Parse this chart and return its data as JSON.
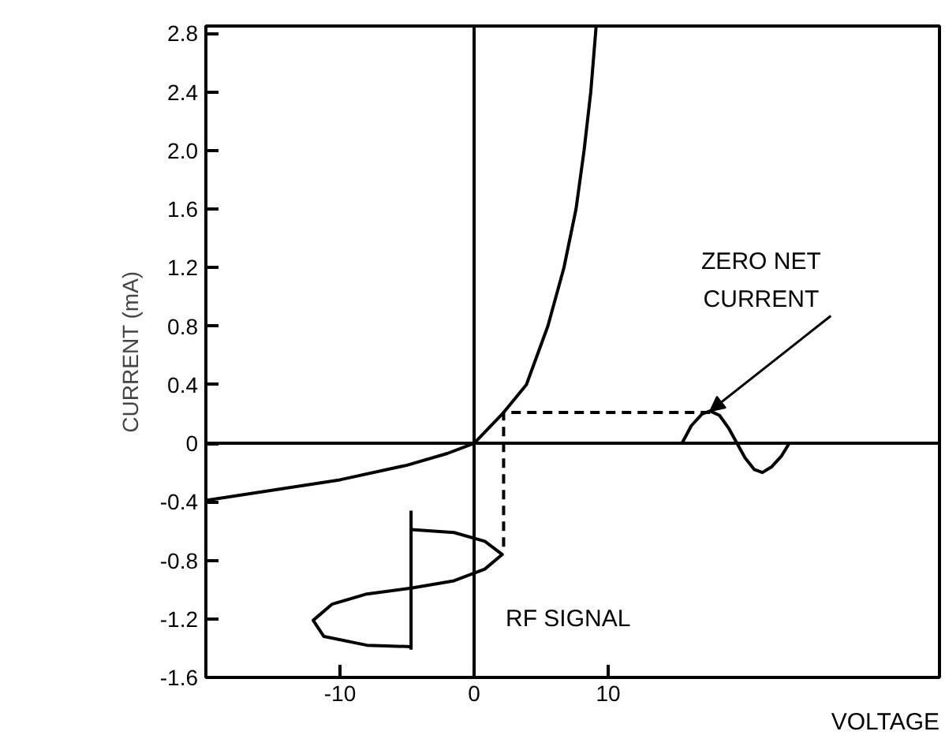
{
  "chart_data": {
    "type": "line",
    "xlabel": "VOLTAGE",
    "ylabel": "CURRENT (mA)",
    "xlim": [
      -20,
      34.7
    ],
    "ylim": [
      -1.6,
      2.85
    ],
    "xticks": [
      -10,
      0,
      10
    ],
    "yticks": [
      -1.6,
      -1.2,
      -0.8,
      -0.4,
      0,
      0.4,
      0.8,
      1.2,
      1.6,
      {
        "value": 2.0,
        "label": "2.0"
      },
      2.4,
      2.8
    ],
    "grid": false,
    "marker": "none",
    "series": [
      {
        "color": "#000000",
        "line_style": "solid",
        "x": [
          0,
          0
        ],
        "values": [
          -1.6,
          2.85
        ]
      },
      {
        "color": "#000000",
        "line_style": "solid",
        "x": [
          -20,
          34.7
        ],
        "values": [
          0,
          0
        ]
      },
      {
        "color": "#000000",
        "line_style": "solid",
        "x": [
          -20,
          -15,
          -10,
          -5,
          -2,
          0,
          2.2,
          3.9,
          5.5,
          6.7,
          7.6,
          8.2,
          8.7,
          9.1
        ],
        "values": [
          -0.39,
          -0.32,
          -0.25,
          -0.15,
          -0.07,
          0,
          0.21,
          0.4,
          0.8,
          1.2,
          1.6,
          2.0,
          2.4,
          2.85
        ]
      },
      {
        "color": "#000000",
        "line_style": "dashed",
        "x": [
          17.6,
          2.2,
          2.2
        ],
        "values": [
          0.21,
          0.21,
          -0.72
        ]
      },
      {
        "color": "#000000",
        "line_style": "solid",
        "x": [
          15.5,
          16.2,
          17.0,
          17.6,
          18.3,
          19.0,
          19.6,
          20.2,
          20.9,
          21.5,
          22.2,
          22.9,
          23.5
        ],
        "values": [
          0,
          0.12,
          0.2,
          0.22,
          0.19,
          0.1,
          0,
          -0.1,
          -0.18,
          -0.2,
          -0.16,
          -0.09,
          0
        ]
      },
      {
        "color": "#000000",
        "line_style": "solid",
        "x": [
          -4.7,
          -4.7
        ],
        "values": [
          -0.46,
          -1.41
        ]
      },
      {
        "color": "#000000",
        "line_style": "solid",
        "x": [
          -4.7,
          -1.5,
          0.8,
          2.1,
          0.8,
          -1.5,
          -4.7,
          -8.0,
          -10.6,
          -12.0,
          -11.2,
          -8.0,
          -4.7
        ],
        "values": [
          -0.59,
          -0.61,
          -0.67,
          -0.76,
          -0.86,
          -0.94,
          -0.99,
          -1.03,
          -1.1,
          -1.21,
          -1.32,
          -1.38,
          -1.39
        ]
      }
    ],
    "annotations": [
      {
        "text": "ZERO NET\nCURRENT",
        "x": 17.6,
        "y": 0.22
      },
      "RF SIGNAL"
    ]
  }
}
